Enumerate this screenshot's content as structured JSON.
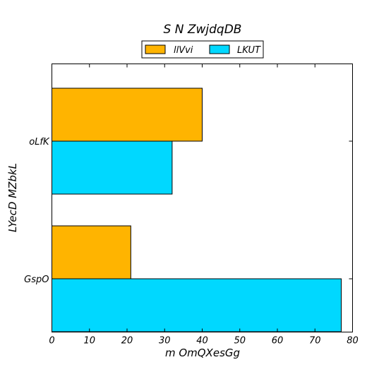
{
  "chart_data": {
    "type": "bar",
    "orientation": "horizontal",
    "title": "S N ZwjdqDB",
    "xlabel": "m  OmQXesGg",
    "ylabel": "LYecD MZbkL",
    "categories": [
      "oLfK",
      "GspO"
    ],
    "series": [
      {
        "name": "llVvi",
        "values": [
          40,
          21
        ],
        "color": "#ffb400"
      },
      {
        "name": "LKUT",
        "values": [
          32,
          77
        ],
        "color": "#00d8ff"
      }
    ],
    "xlim": [
      0,
      80
    ],
    "xticks": [
      0,
      10,
      20,
      30,
      40,
      50,
      60,
      70,
      80
    ],
    "grid": false,
    "legend_position": "top-center"
  }
}
